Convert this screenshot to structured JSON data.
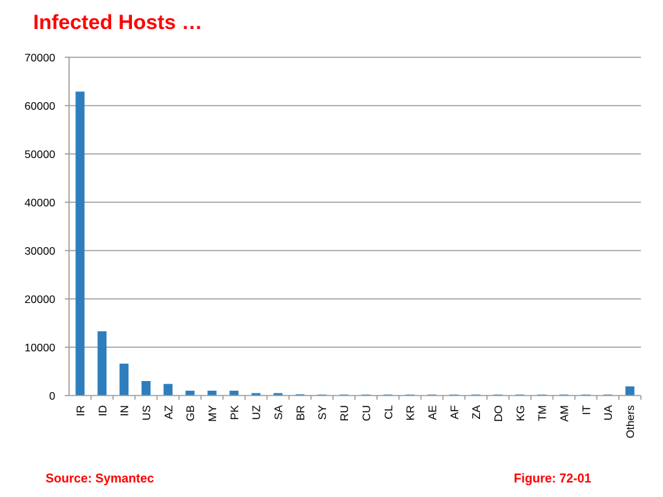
{
  "slide": {
    "title": "Infected Hosts …",
    "source": "Source:  Symantec",
    "figure": "Figure: 72-01"
  },
  "colors": {
    "title": "#ff0000",
    "bar": "#2e7ebd",
    "grid": "#9a9a9a"
  },
  "chart_data": {
    "type": "bar",
    "title": "",
    "xlabel": "",
    "ylabel": "",
    "ylim": [
      0,
      70000
    ],
    "yticks": [
      0,
      10000,
      20000,
      30000,
      40000,
      50000,
      60000,
      70000
    ],
    "grid": true,
    "legend": "none",
    "categories": [
      "IR",
      "ID",
      "IN",
      "US",
      "AZ",
      "GB",
      "MY",
      "PK",
      "UZ",
      "SA",
      "BR",
      "SY",
      "RU",
      "CU",
      "CL",
      "KR",
      "AE",
      "AF",
      "ZA",
      "DO",
      "KG",
      "TM",
      "AM",
      "IT",
      "UA",
      "Others"
    ],
    "values": [
      62900,
      13300,
      6600,
      3000,
      2400,
      1000,
      1000,
      1000,
      500,
      500,
      250,
      200,
      200,
      200,
      200,
      200,
      200,
      200,
      200,
      200,
      200,
      200,
      200,
      200,
      200,
      1900
    ]
  }
}
